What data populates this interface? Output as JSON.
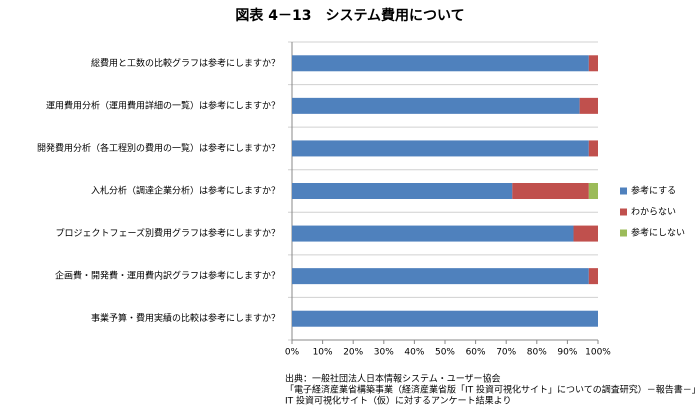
{
  "chart_data": {
    "type": "stacked-barh",
    "title": "図表 4－13　システム費用について",
    "categories": [
      "総費用と工数の比較グラフは参考にしますか？",
      "運用費用分析（運用費用詳細の一覧）は参考にしますか？",
      "開発費用分析（各工程別の費用の一覧）は参考にしますか？",
      "入札分析（調達企業分析）は参考にしますか？",
      "プロジェクトフェーズ別費用グラフは参考にしますか？",
      "企画費・開発費・運用費内訳グラフは参考にしますか？",
      "事業予算・費用実績の比較は参考にしますか？"
    ],
    "series": [
      {
        "name": "参考にする",
        "color": "#4f81bd",
        "values": [
          97,
          94,
          97,
          72,
          92,
          97,
          100
        ]
      },
      {
        "name": "わからない",
        "color": "#c0504d",
        "values": [
          3,
          6,
          3,
          25,
          8,
          3,
          0
        ]
      },
      {
        "name": "参考にしない",
        "color": "#9bbb59",
        "values": [
          0,
          0,
          0,
          3,
          0,
          0,
          0
        ]
      }
    ],
    "xlim": [
      0,
      100
    ],
    "xticks": [
      {
        "value": 0,
        "label": "0%"
      },
      {
        "value": 10,
        "label": "10%"
      },
      {
        "value": 20,
        "label": "20%"
      },
      {
        "value": 30,
        "label": "30%"
      },
      {
        "value": 40,
        "label": "40%"
      },
      {
        "value": 50,
        "label": "50%"
      },
      {
        "value": 60,
        "label": "60%"
      },
      {
        "value": 70,
        "label": "70%"
      },
      {
        "value": 80,
        "label": "80%"
      },
      {
        "value": 90,
        "label": "90%"
      },
      {
        "value": 100,
        "label": "100%"
      }
    ],
    "legend": "right",
    "source": [
      "出典：一般社団法人日本情報システム・ユーザー協会",
      "「電子経済産業省構築事業（経済産業省版「IT 投資可視化サイト」についての調査研究）－報告書－」",
      "IT 投資可視化サイト（仮）に対するアンケート結果より"
    ]
  }
}
